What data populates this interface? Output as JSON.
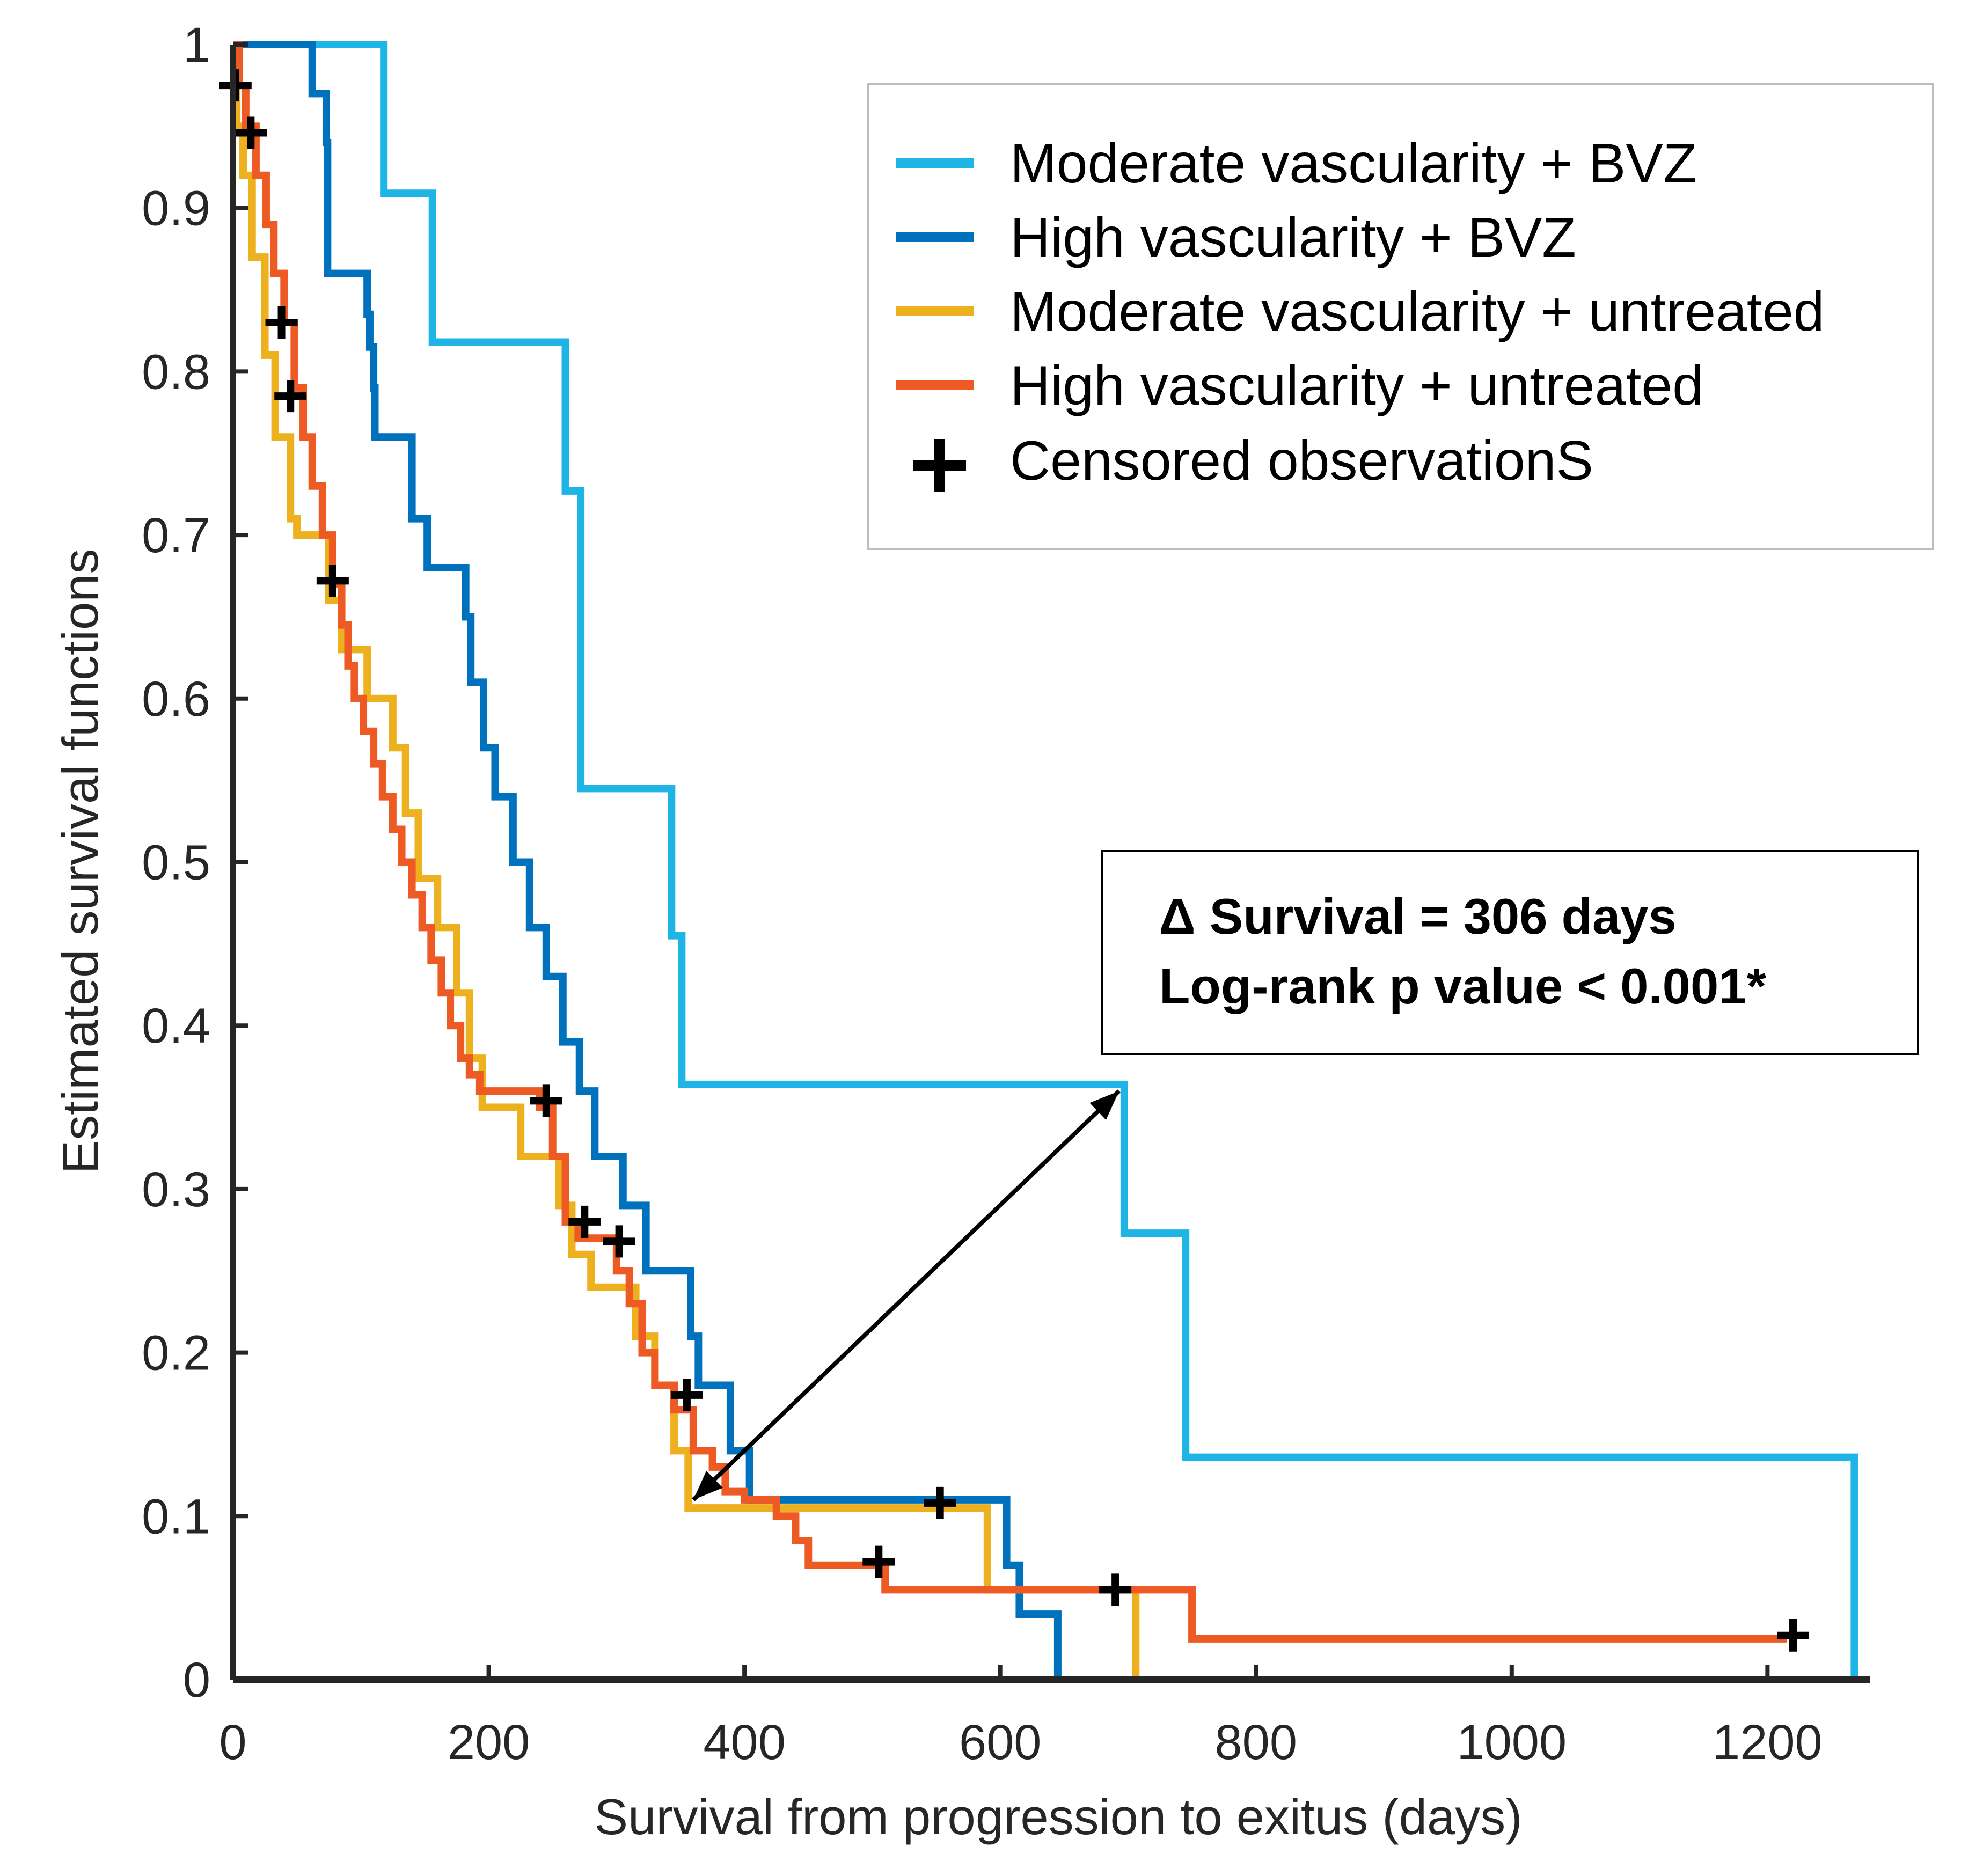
{
  "chart_data": {
    "type": "line",
    "title": "",
    "xlabel": "Survival from progression to exitus (days)",
    "ylabel": "Estimated survival functions",
    "xlim": [
      0,
      1280
    ],
    "ylim": [
      0,
      1
    ],
    "x_ticks": [
      0,
      200,
      400,
      600,
      800,
      1000,
      1200
    ],
    "x_tick_labels": [
      "0",
      "200",
      "400",
      "600",
      "800",
      "1000",
      "1200"
    ],
    "y_ticks": [
      0,
      0.1,
      0.2,
      0.3,
      0.4,
      0.5,
      0.6,
      0.7,
      0.8,
      0.9,
      1
    ],
    "y_tick_labels": [
      "0",
      "0.1",
      "0.2",
      "0.3",
      "0.4",
      "0.5",
      "0.6",
      "0.7",
      "0.8",
      "0.9",
      "1"
    ],
    "grid": false,
    "legend_position": "top-right",
    "series": [
      {
        "name": "Moderate vascularity + BVZ",
        "color": "#1EB4E6",
        "step": true,
        "x": [
          0,
          118,
          156,
          260,
          272,
          343,
          351,
          697,
          745,
          1268,
          1268
        ],
        "y": [
          1,
          0.909,
          0.818,
          0.727,
          0.545,
          0.455,
          0.364,
          0.273,
          0.136,
          0.136,
          0
        ]
      },
      {
        "name": "High vascularity + BVZ",
        "color": "#0072BD",
        "step": true,
        "x": [
          0,
          62,
          73,
          74,
          105,
          107,
          110,
          111,
          140,
          152,
          182,
          186,
          196,
          205,
          219,
          232,
          245,
          258,
          271,
          283,
          305,
          323,
          358,
          364,
          389,
          404,
          438,
          461,
          484,
          497,
          530,
          586,
          605,
          615,
          634,
          645,
          645
        ],
        "y": [
          1,
          0.97,
          0.94,
          0.86,
          0.835,
          0.815,
          0.79,
          0.76,
          0.71,
          0.68,
          0.65,
          0.61,
          0.57,
          0.54,
          0.5,
          0.46,
          0.43,
          0.39,
          0.36,
          0.32,
          0.29,
          0.25,
          0.21,
          0.18,
          0.14,
          0.11,
          0.11,
          0.11,
          0.11,
          0.11,
          0.11,
          0.11,
          0.07,
          0.04,
          0.04,
          0.04,
          0
        ]
      },
      {
        "name": "Moderate vascularity + untreated",
        "color": "#EDB120",
        "step": true,
        "x": [
          0,
          3,
          8,
          15,
          25,
          33,
          45,
          50,
          58,
          75,
          85,
          105,
          125,
          135,
          145,
          160,
          175,
          185,
          195,
          225,
          255,
          265,
          280,
          315,
          330,
          345,
          356,
          430,
          500,
          582,
          590,
          680,
          706,
          706
        ],
        "y": [
          1,
          0.95,
          0.92,
          0.87,
          0.81,
          0.76,
          0.71,
          0.7,
          0.7,
          0.66,
          0.63,
          0.6,
          0.57,
          0.53,
          0.49,
          0.46,
          0.42,
          0.38,
          0.35,
          0.32,
          0.29,
          0.26,
          0.24,
          0.21,
          0.18,
          0.14,
          0.105,
          0.105,
          0.105,
          0.105,
          0.055,
          0.055,
          0.055,
          0
        ]
      },
      {
        "name": "High vascularity + untreated",
        "color": "#EE5A24",
        "step": true,
        "x": [
          0,
          5,
          10,
          18,
          26,
          32,
          40,
          48,
          55,
          62,
          70,
          78,
          85,
          90,
          95,
          102,
          110,
          117,
          125,
          132,
          140,
          148,
          155,
          163,
          170,
          178,
          185,
          193,
          200,
          208,
          240,
          250,
          260,
          270,
          300,
          310,
          320,
          330,
          345,
          360,
          375,
          385,
          400,
          425,
          440,
          450,
          480,
          510,
          520,
          650,
          750,
          1215
        ],
        "y": [
          1,
          0.975,
          0.95,
          0.92,
          0.89,
          0.86,
          0.83,
          0.79,
          0.76,
          0.73,
          0.7,
          0.67,
          0.645,
          0.62,
          0.6,
          0.58,
          0.56,
          0.54,
          0.52,
          0.5,
          0.48,
          0.46,
          0.44,
          0.42,
          0.4,
          0.38,
          0.37,
          0.36,
          0.36,
          0.36,
          0.35,
          0.32,
          0.28,
          0.27,
          0.25,
          0.23,
          0.2,
          0.18,
          0.165,
          0.14,
          0.13,
          0.115,
          0.11,
          0.1,
          0.085,
          0.07,
          0.07,
          0.055,
          0.055,
          0.055,
          0.025,
          0.025
        ]
      }
    ],
    "censored": {
      "name": "Censored observationS",
      "marker": "+",
      "color": "#000000",
      "points": [
        {
          "x": 2,
          "y": 0.975
        },
        {
          "x": 14,
          "y": 0.946
        },
        {
          "x": 38,
          "y": 0.83
        },
        {
          "x": 45,
          "y": 0.785
        },
        {
          "x": 78,
          "y": 0.672
        },
        {
          "x": 245,
          "y": 0.354
        },
        {
          "x": 275,
          "y": 0.28
        },
        {
          "x": 302,
          "y": 0.268
        },
        {
          "x": 355,
          "y": 0.174
        },
        {
          "x": 505,
          "y": 0.072
        },
        {
          "x": 553,
          "y": 0.108
        },
        {
          "x": 690,
          "y": 0.055
        },
        {
          "x": 1220,
          "y": 0.027
        }
      ]
    },
    "annotations": [
      {
        "text_line1": "Δ Survival = 306 days",
        "text_line2": "Log-rank p value < 0.001*"
      }
    ],
    "arrow": {
      "x1": 360,
      "y1": 0.11,
      "x2": 693,
      "y2": 0.36
    }
  }
}
